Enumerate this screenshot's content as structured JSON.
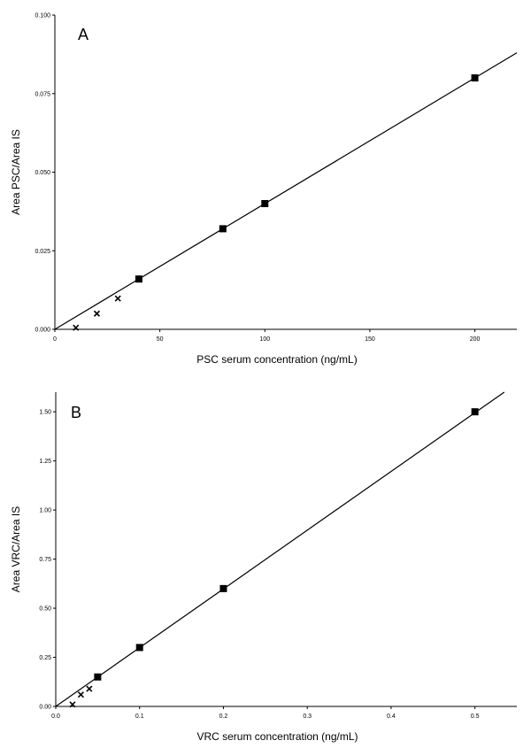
{
  "chart_data": [
    {
      "type": "scatter",
      "panel_label": "A",
      "xlabel": "PSC serum concentration (ng/mL)",
      "ylabel": "Area PSC/Area IS",
      "xlim": [
        0,
        220
      ],
      "ylim": [
        0,
        0.1
      ],
      "xticks": [
        0,
        50,
        100,
        150,
        200
      ],
      "xtick_labels": [
        "0",
        "50",
        "100",
        "150",
        "200"
      ],
      "yticks": [
        0,
        0.025,
        0.05,
        0.075,
        0.1
      ],
      "ytick_labels": [
        "0.000",
        "0.025",
        "0.050",
        "0.075",
        "0.100"
      ],
      "series": [
        {
          "marker": "square",
          "x": [
            40,
            80,
            100,
            200
          ],
          "y": [
            0.016,
            0.032,
            0.04,
            0.08
          ]
        },
        {
          "marker": "x",
          "x": [
            10,
            20,
            30
          ],
          "y": [
            0.0005,
            0.005,
            0.0098
          ]
        }
      ],
      "fit_line": {
        "x": [
          0,
          220
        ],
        "y": [
          0,
          0.088
        ]
      },
      "grid": false,
      "legend": false
    },
    {
      "type": "scatter",
      "panel_label": "B",
      "xlabel": "VRC serum concentration (ng/mL)",
      "ylabel": "Area VRC/Area IS",
      "xlim": [
        0,
        0.55
      ],
      "ylim": [
        0,
        1.6
      ],
      "xticks": [
        0,
        0.1,
        0.2,
        0.3,
        0.4,
        0.5
      ],
      "xtick_labels": [
        "0.0",
        "0.1",
        "0.2",
        "0.3",
        "0.4",
        "0.5"
      ],
      "yticks": [
        0,
        0.25,
        0.5,
        0.75,
        1.0,
        1.25,
        1.5
      ],
      "ytick_labels": [
        "0.00",
        "0.25",
        "0.50",
        "0.75",
        "1.00",
        "1.25",
        "1.50"
      ],
      "series": [
        {
          "marker": "square",
          "x": [
            0.05,
            0.1,
            0.2,
            0.5
          ],
          "y": [
            0.15,
            0.3,
            0.6,
            1.5
          ]
        },
        {
          "marker": "x",
          "x": [
            0.02,
            0.03,
            0.04
          ],
          "y": [
            0.01,
            0.06,
            0.09
          ]
        }
      ],
      "fit_line": {
        "x": [
          0,
          0.535
        ],
        "y": [
          0,
          1.6
        ]
      },
      "grid": false,
      "legend": false
    }
  ]
}
